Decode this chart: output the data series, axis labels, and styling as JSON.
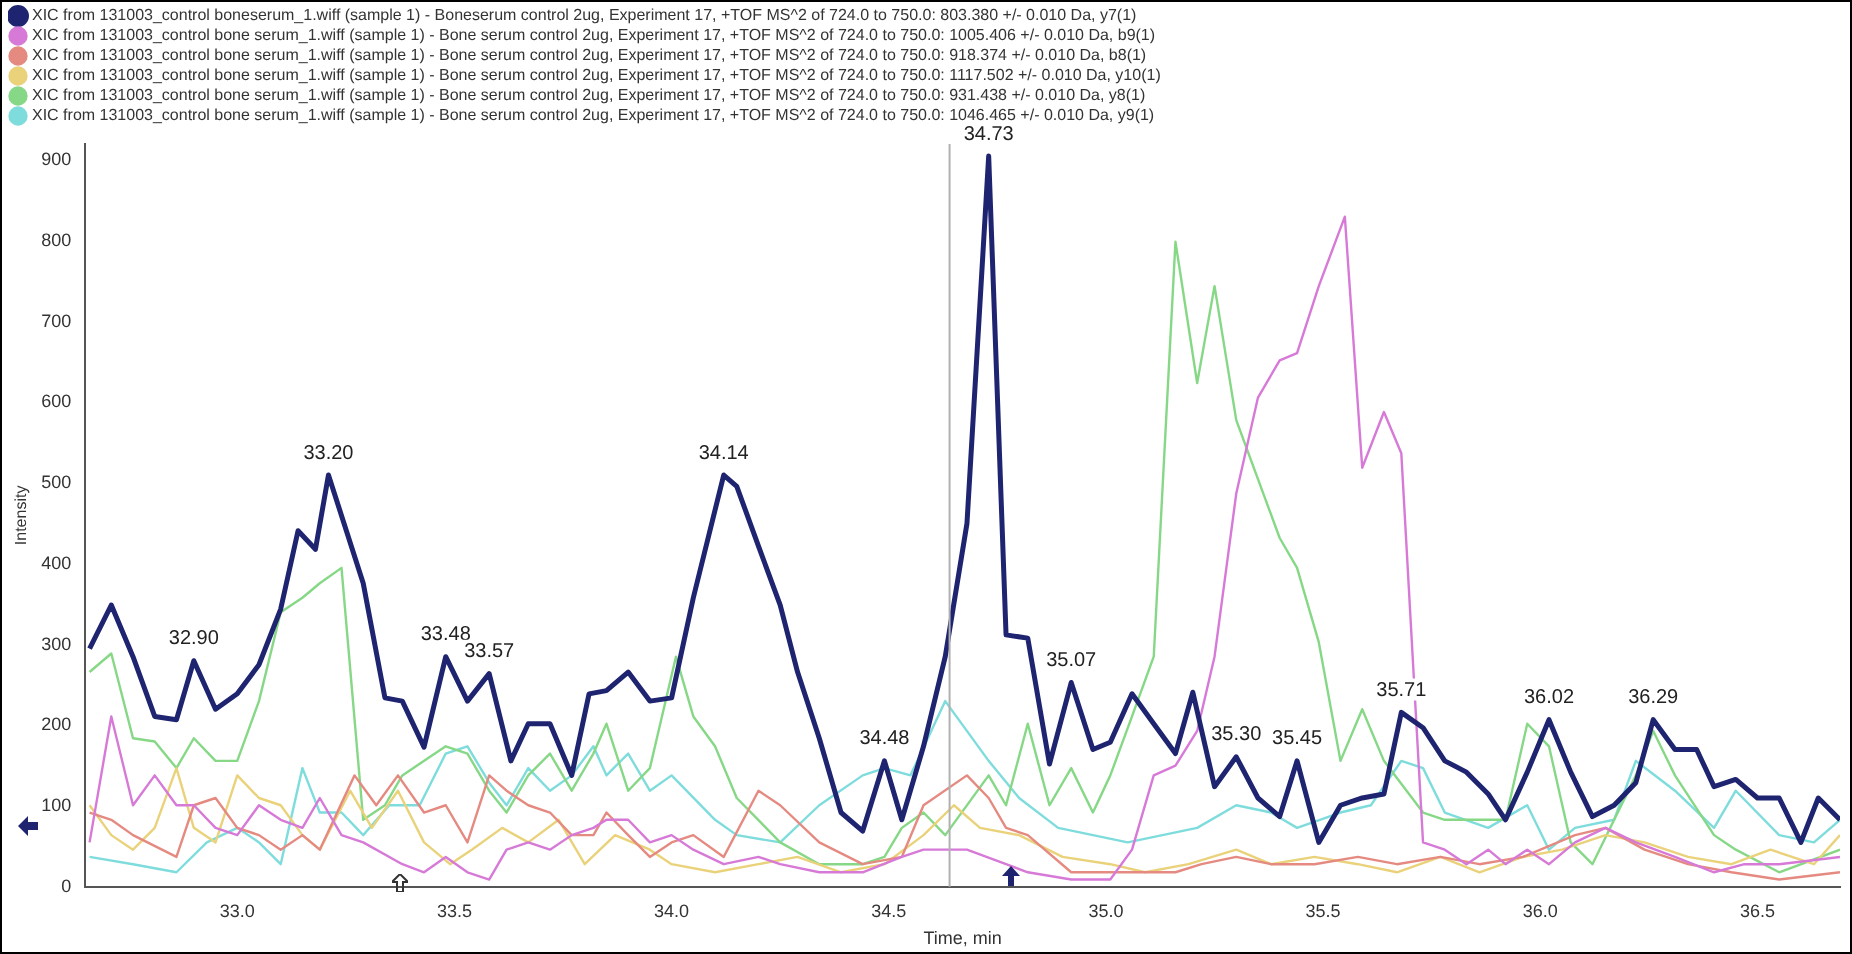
{
  "chart_data": {
    "type": "line",
    "xlabel": "Time, min",
    "ylabel": "Intensity",
    "xlim": [
      32.65,
      36.69
    ],
    "ylim": [
      0,
      920
    ],
    "xticks": [
      {
        "value": 33,
        "label": "33.0"
      },
      {
        "value": 33.5,
        "label": "33.5"
      },
      {
        "value": 34,
        "label": "34.0"
      },
      {
        "value": 34.5,
        "label": "34.5"
      },
      {
        "value": 35,
        "label": "35.0"
      },
      {
        "value": 35.5,
        "label": "35.5"
      },
      {
        "value": 36,
        "label": "36.0"
      },
      {
        "value": 36.5,
        "label": "36.5"
      }
    ],
    "yticks": [
      0,
      100,
      200,
      300,
      400,
      500,
      600,
      700,
      800,
      900
    ],
    "grid": false,
    "legend": "top left",
    "marker": "none",
    "line_style": "solid",
    "ref_lines": [
      {
        "axis": "x",
        "value": 34.64,
        "color": "#b0b0b0"
      }
    ],
    "annotations": [
      {
        "text": "32.90",
        "x": 32.9,
        "y": 280
      },
      {
        "text": "33.20",
        "x": 33.21,
        "y": 510
      },
      {
        "text": "33.48",
        "x": 33.48,
        "y": 285
      },
      {
        "text": "33.57",
        "x": 33.58,
        "y": 264
      },
      {
        "text": "34.14",
        "x": 34.12,
        "y": 510
      },
      {
        "text": "34.48",
        "x": 34.49,
        "y": 156
      },
      {
        "text": "34.73",
        "x": 34.73,
        "y": 905
      },
      {
        "text": "35.07",
        "x": 34.92,
        "y": 253
      },
      {
        "text": "35.30",
        "x": 35.3,
        "y": 161
      },
      {
        "text": "35.45",
        "x": 35.44,
        "y": 156
      },
      {
        "text": "35.71",
        "x": 35.68,
        "y": 216
      },
      {
        "text": "36.02",
        "x": 36.02,
        "y": 207
      },
      {
        "text": "36.29",
        "x": 36.26,
        "y": 207
      }
    ],
    "series": [
      {
        "name": "XIC from 131003_control boneserum_1.wiff (sample 1) - Boneserum control 2ug, Experiment 17, +TOF MS^2 of 724.0 to 750.0: 803.380 +/- 0.010 Da, y7(1)",
        "color": "#1f2470",
        "x": [
          32.66,
          32.71,
          32.76,
          32.81,
          32.86,
          32.9,
          32.95,
          33.0,
          33.05,
          33.1,
          33.14,
          33.18,
          33.21,
          33.29,
          33.34,
          33.38,
          33.43,
          33.48,
          33.53,
          33.58,
          33.63,
          33.67,
          33.72,
          33.77,
          33.81,
          33.85,
          33.9,
          33.95,
          34.0,
          34.05,
          34.12,
          34.15,
          34.2,
          34.25,
          34.29,
          34.34,
          34.39,
          34.44,
          34.49,
          34.53,
          34.58,
          34.63,
          34.68,
          34.73,
          34.77,
          34.82,
          34.87,
          34.92,
          34.97,
          35.01,
          35.06,
          35.11,
          35.16,
          35.2,
          35.25,
          35.3,
          35.35,
          35.4,
          35.44,
          35.49,
          35.54,
          35.59,
          35.64,
          35.68,
          35.73,
          35.78,
          35.83,
          35.88,
          35.92,
          35.97,
          36.02,
          36.07,
          36.12,
          36.17,
          36.22,
          36.26,
          36.31,
          36.36,
          36.4,
          36.45,
          36.5,
          36.55,
          36.6,
          36.64,
          36.69
        ],
        "values": [
          295,
          349,
          285,
          211,
          207,
          280,
          220,
          239,
          275,
          344,
          441,
          418,
          510,
          376,
          234,
          230,
          173,
          285,
          230,
          264,
          156,
          202,
          202,
          138,
          239,
          243,
          266,
          230,
          234,
          358,
          510,
          496,
          422,
          349,
          266,
          184,
          92,
          69,
          156,
          83,
          174,
          285,
          450,
          905,
          312,
          308,
          152,
          253,
          170,
          179,
          239,
          202,
          165,
          241,
          124,
          161,
          110,
          87,
          156,
          55,
          101,
          110,
          115,
          216,
          197,
          156,
          142,
          115,
          83,
          142,
          207,
          142,
          87,
          101,
          129,
          207,
          170,
          170,
          124,
          133,
          110,
          110,
          55,
          110,
          83
        ]
      },
      {
        "name": "XIC from 131003_control bone serum_1.wiff (sample 1) - Bone serum control 2ug, Experiment 17, +TOF MS^2 of 724.0 to 750.0: 1005.406 +/- 0.010 Da, b9(1)",
        "color": "#d77ad7",
        "x": [
          32.66,
          32.71,
          32.76,
          32.81,
          32.86,
          32.9,
          32.95,
          33.0,
          33.05,
          33.1,
          33.15,
          33.19,
          33.24,
          33.29,
          33.38,
          33.43,
          33.48,
          33.53,
          33.58,
          33.62,
          33.67,
          33.72,
          33.77,
          33.82,
          33.85,
          33.9,
          33.95,
          34.0,
          34.05,
          34.12,
          34.2,
          34.25,
          34.34,
          34.44,
          34.53,
          34.58,
          34.68,
          34.77,
          34.82,
          34.92,
          35.01,
          35.06,
          35.11,
          35.16,
          35.21,
          35.25,
          35.3,
          35.35,
          35.4,
          35.44,
          35.49,
          35.55,
          35.59,
          35.64,
          35.68,
          35.73,
          35.78,
          35.83,
          35.88,
          35.92,
          35.97,
          36.02,
          36.08,
          36.15,
          36.22,
          36.31,
          36.4,
          36.47,
          36.55,
          36.69
        ],
        "values": [
          55,
          211,
          101,
          138,
          101,
          101,
          73,
          64,
          101,
          83,
          73,
          110,
          64,
          55,
          28,
          18,
          37,
          18,
          9,
          46,
          55,
          46,
          64,
          73,
          83,
          83,
          55,
          64,
          46,
          28,
          37,
          28,
          18,
          18,
          37,
          46,
          46,
          28,
          18,
          9,
          9,
          46,
          138,
          150,
          193,
          285,
          487,
          606,
          652,
          661,
          744,
          830,
          519,
          588,
          537,
          55,
          46,
          28,
          46,
          28,
          46,
          28,
          55,
          73,
          55,
          37,
          18,
          28,
          28,
          37
        ]
      },
      {
        "name": "XIC from 131003_control bone serum_1.wiff (sample 1) - Bone serum control 2ug, Experiment 17, +TOF MS^2 of 724.0 to 750.0: 918.374 +/- 0.010 Da, b8(1)",
        "color": "#e58a80",
        "x": [
          32.66,
          32.71,
          32.76,
          32.86,
          32.9,
          32.95,
          33.0,
          33.05,
          33.1,
          33.15,
          33.19,
          33.27,
          33.32,
          33.37,
          33.43,
          33.48,
          33.53,
          33.58,
          33.62,
          33.67,
          33.72,
          33.77,
          33.82,
          33.85,
          33.9,
          33.95,
          34.0,
          34.05,
          34.12,
          34.2,
          34.25,
          34.34,
          34.44,
          34.53,
          34.58,
          34.68,
          34.73,
          34.77,
          34.82,
          34.92,
          35.01,
          35.06,
          35.16,
          35.22,
          35.3,
          35.38,
          35.48,
          35.58,
          35.67,
          35.77,
          35.86,
          35.96,
          36.08,
          36.15,
          36.24,
          36.34,
          36.44,
          36.55,
          36.69
        ],
        "values": [
          92,
          83,
          64,
          37,
          101,
          110,
          73,
          64,
          46,
          64,
          46,
          138,
          101,
          138,
          92,
          101,
          55,
          138,
          119,
          101,
          92,
          64,
          64,
          92,
          64,
          37,
          55,
          64,
          37,
          119,
          101,
          55,
          28,
          37,
          101,
          138,
          110,
          73,
          64,
          18,
          18,
          18,
          18,
          28,
          37,
          28,
          28,
          37,
          28,
          37,
          28,
          37,
          64,
          73,
          46,
          28,
          18,
          9,
          18
        ]
      },
      {
        "name": "XIC from 131003_control bone serum_1.wiff (sample 1) - Bone serum control 2ug, Experiment 17, +TOF MS^2 of 724.0 to 750.0: 1117.502 +/- 0.010 Da, y10(1)",
        "color": "#ead27a",
        "x": [
          32.66,
          32.71,
          32.76,
          32.81,
          32.86,
          32.9,
          32.95,
          33.0,
          33.05,
          33.1,
          33.15,
          33.19,
          33.26,
          33.31,
          33.37,
          33.43,
          33.49,
          33.54,
          33.61,
          33.67,
          33.74,
          33.8,
          33.87,
          33.95,
          34.0,
          34.1,
          34.2,
          34.29,
          34.39,
          34.49,
          34.58,
          34.65,
          34.71,
          34.8,
          34.9,
          35.01,
          35.09,
          35.19,
          35.3,
          35.38,
          35.48,
          35.58,
          35.67,
          35.77,
          35.86,
          35.96,
          36.05,
          36.15,
          36.24,
          36.34,
          36.44,
          36.53,
          36.63,
          36.69
        ],
        "values": [
          101,
          64,
          46,
          73,
          147,
          73,
          55,
          138,
          110,
          101,
          64,
          46,
          119,
          73,
          119,
          55,
          28,
          46,
          73,
          55,
          83,
          28,
          64,
          46,
          28,
          18,
          28,
          37,
          18,
          28,
          64,
          101,
          73,
          64,
          37,
          28,
          18,
          28,
          46,
          28,
          37,
          28,
          18,
          37,
          18,
          37,
          46,
          64,
          55,
          37,
          28,
          46,
          28,
          64
        ]
      },
      {
        "name": "XIC from 131003_control bone serum_1.wiff (sample 1) - Bone serum control 2ug, Experiment 17, +TOF MS^2 of 724.0 to 750.0: 931.438 +/- 0.010 Da, y8(1)",
        "color": "#86d886",
        "x": [
          32.66,
          32.71,
          32.76,
          32.81,
          32.86,
          32.9,
          32.95,
          33.0,
          33.05,
          33.1,
          33.15,
          33.19,
          33.24,
          33.29,
          33.34,
          33.38,
          33.48,
          33.53,
          33.58,
          33.62,
          33.67,
          33.72,
          33.77,
          33.82,
          33.85,
          33.9,
          33.95,
          34.01,
          34.05,
          34.1,
          34.15,
          34.25,
          34.34,
          34.44,
          34.49,
          34.53,
          34.58,
          34.63,
          34.73,
          34.77,
          34.82,
          34.87,
          34.92,
          34.97,
          35.01,
          35.06,
          35.11,
          35.16,
          35.21,
          35.25,
          35.3,
          35.35,
          35.4,
          35.44,
          35.49,
          35.54,
          35.59,
          35.64,
          35.73,
          35.78,
          35.88,
          35.92,
          35.97,
          36.02,
          36.07,
          36.12,
          36.22,
          36.26,
          36.31,
          36.4,
          36.45,
          36.55,
          36.69
        ],
        "values": [
          266,
          289,
          184,
          180,
          147,
          184,
          156,
          156,
          230,
          340,
          358,
          376,
          395,
          83,
          101,
          138,
          174,
          165,
          119,
          92,
          138,
          165,
          119,
          165,
          202,
          119,
          147,
          285,
          211,
          174,
          110,
          55,
          28,
          28,
          37,
          73,
          92,
          64,
          138,
          101,
          202,
          101,
          147,
          92,
          138,
          211,
          285,
          799,
          624,
          744,
          578,
          505,
          432,
          395,
          303,
          156,
          220,
          156,
          92,
          83,
          83,
          83,
          202,
          174,
          55,
          28,
          138,
          193,
          138,
          64,
          46,
          18,
          46
        ]
      },
      {
        "name": "XIC from 131003_control bone serum_1.wiff (sample 1) - Bone serum control 2ug, Experiment 17, +TOF MS^2 of 724.0 to 750.0: 1046.465 +/- 0.010 Da, y9(1)",
        "color": "#7fdcdc",
        "x": [
          32.66,
          32.76,
          32.86,
          32.93,
          33.0,
          33.05,
          33.1,
          33.15,
          33.19,
          33.24,
          33.29,
          33.35,
          33.42,
          33.48,
          33.53,
          33.58,
          33.62,
          33.67,
          33.72,
          33.77,
          33.82,
          33.85,
          33.9,
          33.95,
          34.0,
          34.1,
          34.15,
          34.25,
          34.34,
          34.44,
          34.49,
          34.55,
          34.63,
          34.73,
          34.8,
          34.89,
          34.97,
          35.05,
          35.13,
          35.21,
          35.3,
          35.38,
          35.44,
          35.54,
          35.61,
          35.68,
          35.73,
          35.78,
          35.88,
          35.97,
          36.02,
          36.08,
          36.17,
          36.22,
          36.31,
          36.4,
          36.45,
          36.55,
          36.63,
          36.69
        ],
        "values": [
          37,
          28,
          18,
          55,
          73,
          55,
          28,
          147,
          92,
          92,
          64,
          101,
          101,
          165,
          174,
          129,
          101,
          147,
          119,
          138,
          174,
          138,
          165,
          119,
          138,
          83,
          64,
          55,
          101,
          138,
          147,
          138,
          230,
          156,
          110,
          73,
          64,
          55,
          64,
          73,
          101,
          92,
          73,
          92,
          101,
          156,
          147,
          92,
          73,
          101,
          46,
          73,
          83,
          156,
          119,
          73,
          119,
          64,
          55,
          83
        ]
      }
    ]
  }
}
